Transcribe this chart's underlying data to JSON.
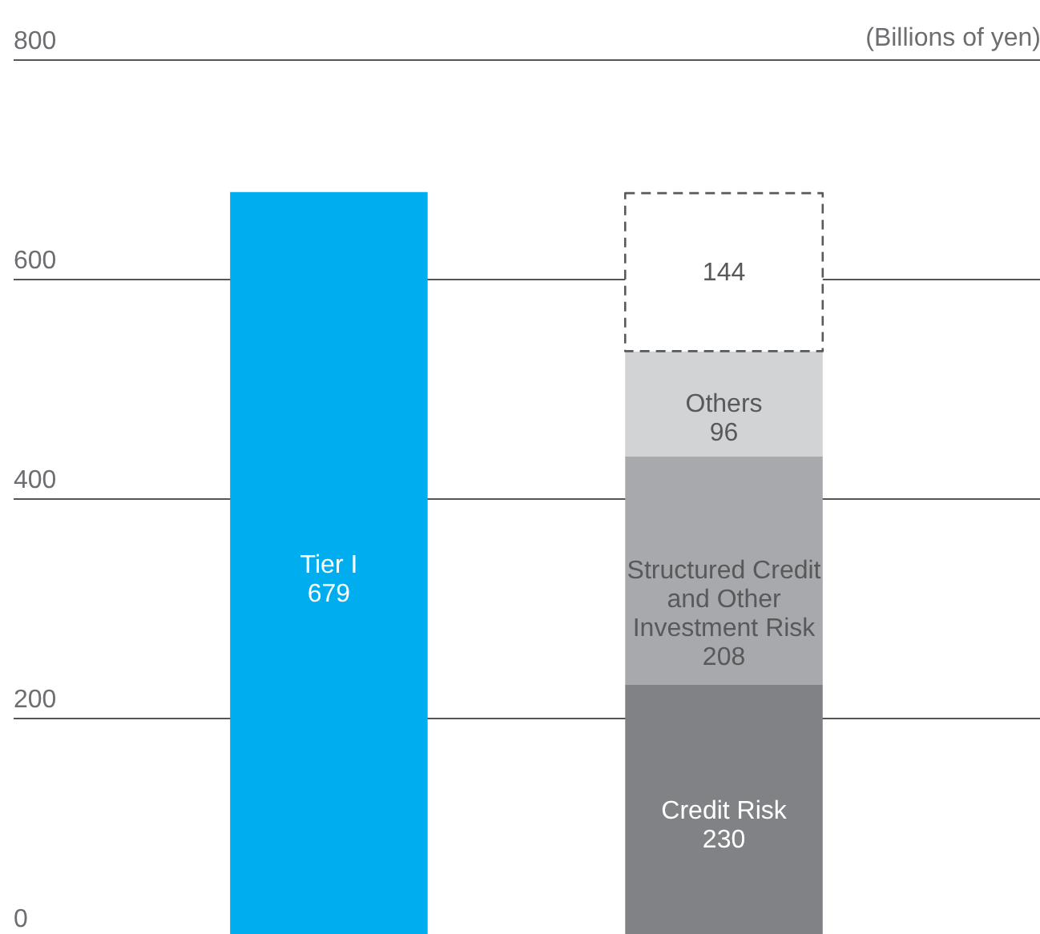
{
  "chart_data": {
    "type": "bar",
    "stacked": true,
    "categories": [
      null,
      null
    ],
    "ylabel": "(Billions of yen)",
    "ylim": [
      0,
      800
    ],
    "yticks": [
      0,
      200,
      400,
      600,
      800
    ],
    "grid": "y",
    "data_labels": true,
    "series": [
      {
        "name": "Tier I",
        "color": "#00aeef",
        "values": [
          679,
          null
        ]
      },
      {
        "name": "Credit Risk",
        "color": "#808285",
        "values": [
          null,
          230
        ]
      },
      {
        "name": "Structured Credit and Other Investment Risk",
        "color": "#a7a9ac",
        "values": [
          null,
          208
        ]
      },
      {
        "name": "Others",
        "color": "#d1d3d4",
        "values": [
          null,
          96
        ]
      },
      {
        "color": "#ffffff",
        "line_style": "dashed",
        "values": [
          null,
          144
        ]
      }
    ]
  }
}
